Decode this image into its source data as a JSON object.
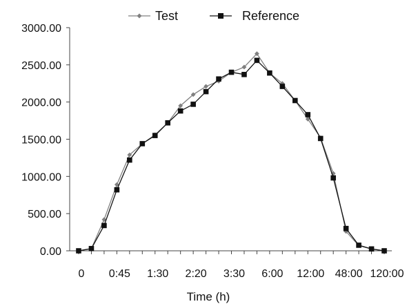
{
  "chart_data": {
    "type": "line",
    "title": "",
    "xlabel": "Time (h)",
    "ylabel": "",
    "ylim": [
      0,
      3000
    ],
    "yticks": [
      "0.00",
      "500.00",
      "1000.00",
      "1500.00",
      "2000.00",
      "2500.00",
      "3000.00"
    ],
    "xtick_labels": [
      "0",
      "0:45",
      "1:30",
      "2:20",
      "3:30",
      "6:00",
      "12:00",
      "48:00",
      "120:00"
    ],
    "grid": false,
    "legend_position": "top-center",
    "series": [
      {
        "name": "Test",
        "color": "#808080",
        "marker": "diamond",
        "values": [
          0,
          30,
          420,
          890,
          1290,
          1440,
          1560,
          1720,
          1950,
          2100,
          2210,
          2280,
          2400,
          2470,
          2650,
          2390,
          2250,
          2020,
          1770,
          1520,
          1040,
          260,
          70,
          25,
          0
        ]
      },
      {
        "name": "Reference",
        "color": "#111111",
        "marker": "square",
        "values": [
          0,
          30,
          340,
          820,
          1220,
          1440,
          1550,
          1720,
          1880,
          1970,
          2140,
          2310,
          2400,
          2370,
          2560,
          2390,
          2210,
          2020,
          1830,
          1510,
          980,
          300,
          75,
          25,
          0
        ]
      }
    ]
  }
}
